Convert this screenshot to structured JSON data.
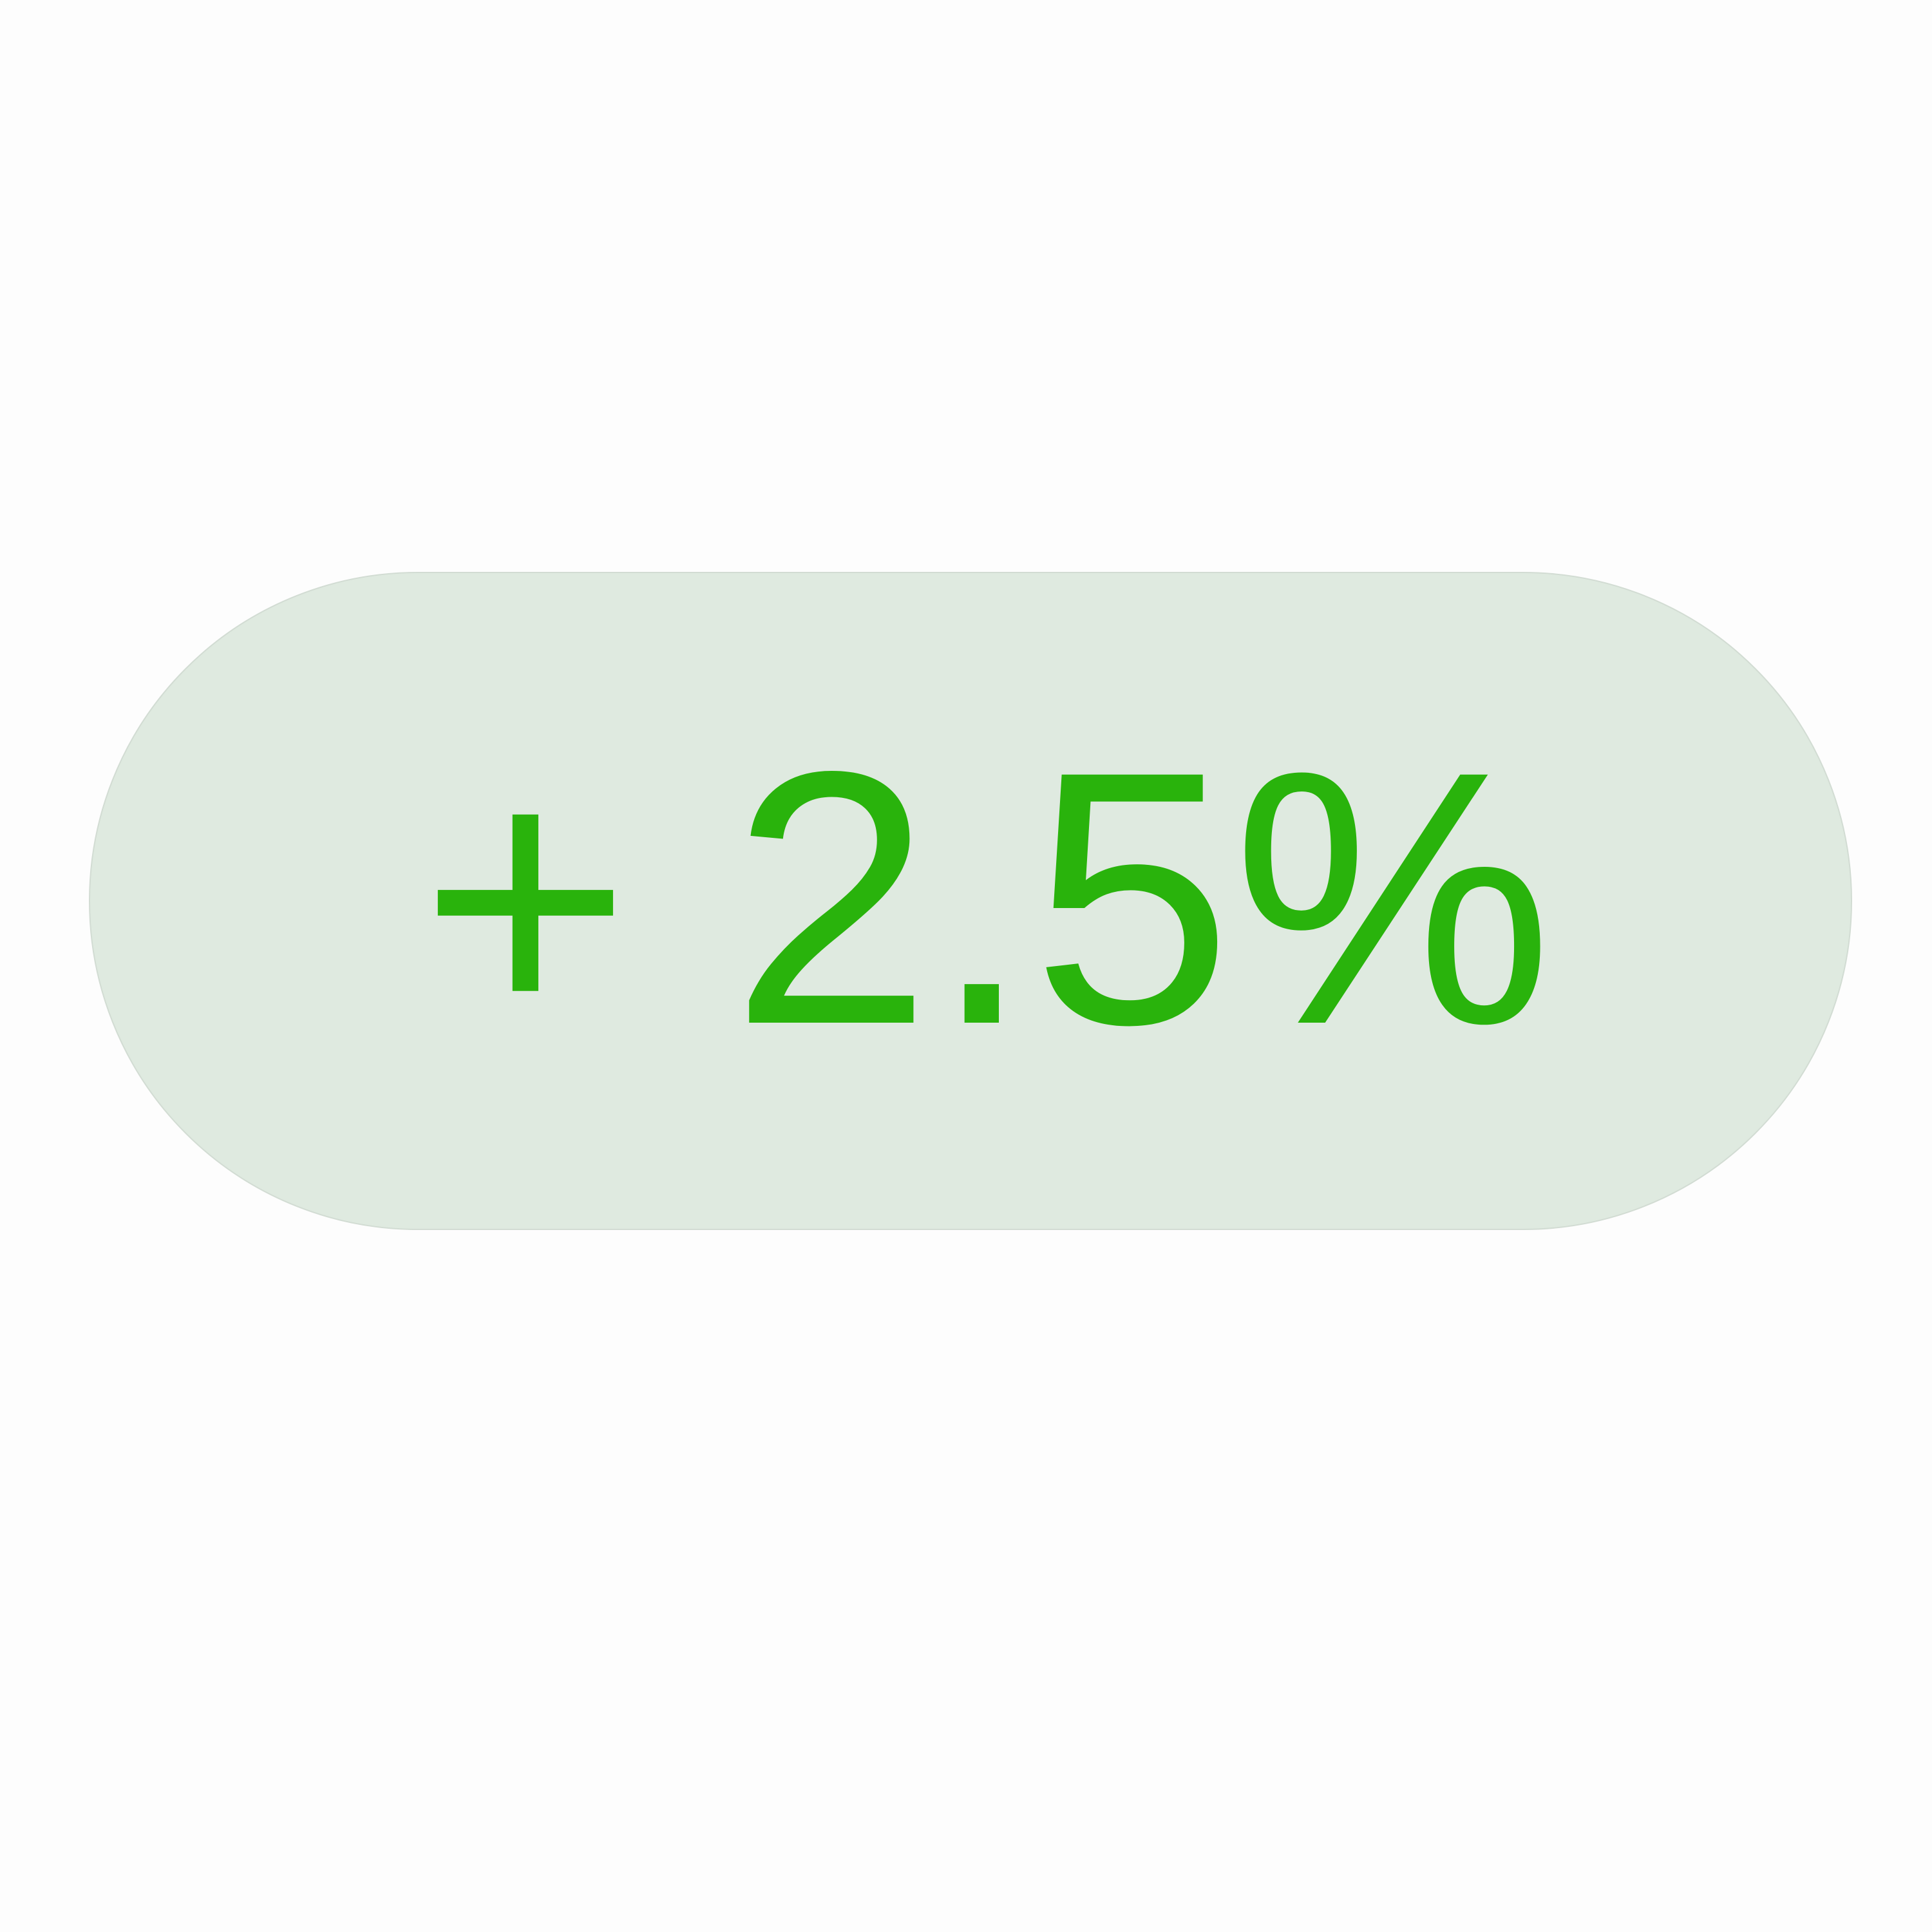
{
  "badge": {
    "value_text": "+ 2.5%",
    "value": 2.5,
    "unit": "%",
    "colors": {
      "text": "#29b30c",
      "background": "#dfeae0",
      "border": "#d2dcd3",
      "page_background": "#fdfdfd"
    }
  }
}
